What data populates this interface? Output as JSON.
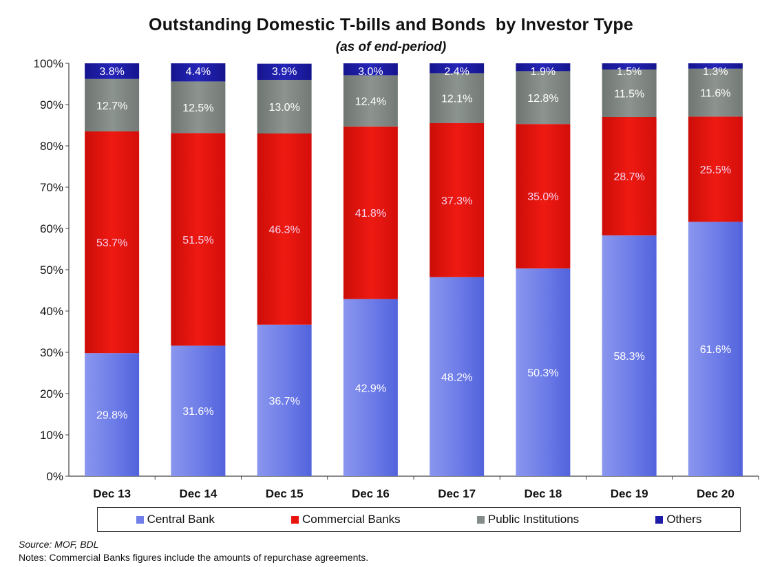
{
  "title": "Outstanding Domestic T-bills and Bonds  by Investor Type",
  "subtitle": "(as of end-period)",
  "source": "Source: MOF, BDL",
  "notes": "Notes: Commercial Banks figures include the amounts of repurchase agreements.",
  "colors": {
    "central_bank": "#6f7ee8",
    "commercial_banks": "#e8150f",
    "public_institutions": "#858c88",
    "others": "#1c1ca8"
  },
  "chart_data": {
    "type": "bar",
    "stacked": true,
    "categories": [
      "Dec 13",
      "Dec 14",
      "Dec 15",
      "Dec 16",
      "Dec 17",
      "Dec 18",
      "Dec 19",
      "Dec 20"
    ],
    "yticks": [
      "0%",
      "10%",
      "20%",
      "30%",
      "40%",
      "50%",
      "60%",
      "70%",
      "80%",
      "90%",
      "100%"
    ],
    "ylim": [
      0,
      100
    ],
    "legend_position": "bottom",
    "series": [
      {
        "name": "Central Bank",
        "key": "central_bank",
        "values": [
          29.8,
          31.6,
          36.7,
          42.9,
          48.2,
          50.3,
          58.3,
          61.6
        ],
        "labels": [
          "29.8%",
          "31.6%",
          "36.7%",
          "42.9%",
          "48.2%",
          "50.3%",
          "58.3%",
          "61.6%"
        ]
      },
      {
        "name": "Commercial Banks",
        "key": "commercial_banks",
        "values": [
          53.7,
          51.5,
          46.3,
          41.8,
          37.3,
          35.0,
          28.7,
          25.5
        ],
        "labels": [
          "53.7%",
          "51.5%",
          "46.3%",
          "41.8%",
          "37.3%",
          "35.0%",
          "28.7%",
          "25.5%"
        ]
      },
      {
        "name": "Public Institutions",
        "key": "public_institutions",
        "values": [
          12.7,
          12.5,
          13.0,
          12.4,
          12.1,
          12.8,
          11.5,
          11.6
        ],
        "labels": [
          "12.7%",
          "12.5%",
          "13.0%",
          "12.4%",
          "12.1%",
          "12.8%",
          "11.5%",
          "11.6%"
        ]
      },
      {
        "name": "Others",
        "key": "others",
        "values": [
          3.8,
          4.4,
          3.9,
          3.0,
          2.4,
          1.9,
          1.5,
          1.3
        ],
        "labels": [
          "3.8%",
          "4.4%",
          "3.9%",
          "3.0%",
          "2.4%",
          "1.9%",
          "1.5%",
          "1.3%"
        ]
      }
    ]
  }
}
